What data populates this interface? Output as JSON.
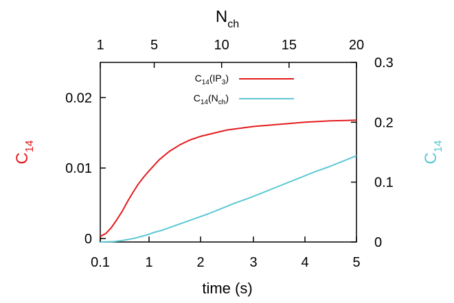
{
  "chart_data": {
    "type": "line",
    "xlabel": "time (s)",
    "x2label_main": "N",
    "x2label_sub": "ch",
    "y1label_main": "C",
    "y1label_sub": "14",
    "y2label_main": "C",
    "y2label_sub": "14",
    "x_ticks": [
      0.1,
      1,
      2,
      3,
      4,
      5
    ],
    "x_tick_labels": [
      "0.1",
      "1",
      "2",
      "3",
      "4",
      "5"
    ],
    "x2_ticks": [
      1,
      5,
      10,
      15,
      20
    ],
    "x2_tick_labels": [
      "1",
      "5",
      "10",
      "15",
      "20"
    ],
    "y1_ticks": [
      0,
      0.01,
      0.02
    ],
    "y1_tick_labels": [
      "0",
      "0.01",
      "0.02"
    ],
    "y2_ticks": [
      0,
      0.1,
      0.2,
      0.3
    ],
    "y2_tick_labels": [
      "0",
      "0.1",
      "0.2",
      "0.3"
    ],
    "xlim": [
      0.1,
      5
    ],
    "x2lim": [
      1,
      20
    ],
    "y1lim": [
      -0.0005,
      0.025
    ],
    "y2lim": [
      0,
      0.3
    ],
    "legend_position": "top-right",
    "series": [
      {
        "name_main": "C",
        "name_sub1": "14",
        "name_mid": "(IP",
        "name_sub2": "3",
        "name_end": ")",
        "axis": "y1",
        "x_axis": "x",
        "color": "#e41a1c",
        "x": [
          0.1,
          0.2,
          0.3,
          0.4,
          0.5,
          0.6,
          0.7,
          0.8,
          0.9,
          1.0,
          1.2,
          1.4,
          1.6,
          1.8,
          2.0,
          2.5,
          3.0,
          3.5,
          4.0,
          4.5,
          5.0
        ],
        "y": [
          0.0003,
          0.0007,
          0.0015,
          0.0026,
          0.0038,
          0.0052,
          0.0065,
          0.0077,
          0.0087,
          0.0096,
          0.0112,
          0.0124,
          0.0133,
          0.014,
          0.0145,
          0.0154,
          0.0159,
          0.0162,
          0.0165,
          0.0167,
          0.0168
        ]
      },
      {
        "name_main": "C",
        "name_sub1": "14",
        "name_mid": "(N",
        "name_sub2": "ch",
        "name_end": ")",
        "axis": "y2",
        "x_axis": "x2",
        "color": "#5bc8d4",
        "x": [
          1,
          1.5,
          2,
          2.5,
          3,
          3.5,
          4,
          4.5,
          5,
          5.5,
          6,
          6.5,
          7,
          7.5,
          8,
          9,
          10,
          11,
          12,
          13,
          14,
          15,
          16,
          17,
          18,
          19,
          20
        ],
        "y": [
          0.0,
          0.0002,
          0.0007,
          0.002,
          0.004,
          0.006,
          0.009,
          0.012,
          0.016,
          0.019,
          0.023,
          0.027,
          0.031,
          0.035,
          0.039,
          0.047,
          0.056,
          0.065,
          0.073,
          0.082,
          0.091,
          0.1,
          0.109,
          0.118,
          0.126,
          0.135,
          0.144
        ]
      }
    ]
  }
}
